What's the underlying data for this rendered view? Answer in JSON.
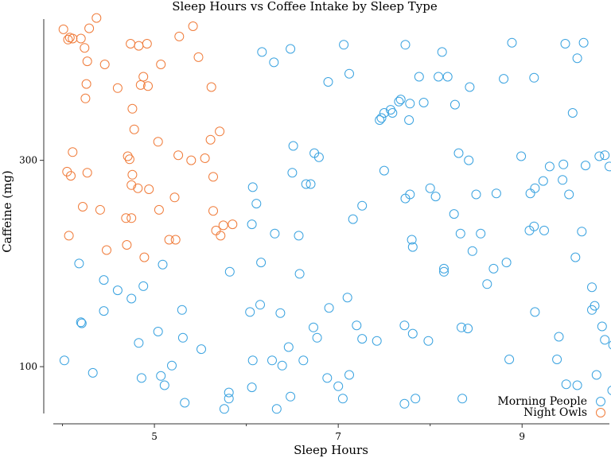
{
  "chart_data": {
    "type": "scatter",
    "title": "Sleep Hours vs Coffee Intake by Sleep Type",
    "xlabel": "Sleep Hours",
    "ylabel": "Caffeine (mg)",
    "xlim": [
      3.9,
      9.95
    ],
    "ylim": [
      50,
      440
    ],
    "xticks": [
      5,
      7,
      9
    ],
    "yticks": [
      100,
      300
    ],
    "grid": false,
    "legend_position": "bottom-right",
    "series": [
      {
        "name": "Morning People",
        "color": "#3ba3e0",
        "points": [
          [
            6.17,
            405
          ],
          [
            6.3,
            395
          ],
          [
            6.48,
            408
          ],
          [
            7.06,
            412
          ],
          [
            7.12,
            384
          ],
          [
            6.89,
            376
          ],
          [
            7.73,
            412
          ],
          [
            8.13,
            405
          ],
          [
            8.89,
            414
          ],
          [
            9.47,
            413
          ],
          [
            9.67,
            414
          ],
          [
            9.6,
            399
          ],
          [
            7.88,
            381
          ],
          [
            8.09,
            381
          ],
          [
            8.19,
            381
          ],
          [
            8.8,
            379
          ],
          [
            9.13,
            380
          ],
          [
            8.43,
            371
          ],
          [
            7.68,
            359
          ],
          [
            7.66,
            357
          ],
          [
            7.78,
            355
          ],
          [
            7.57,
            349
          ],
          [
            7.59,
            346
          ],
          [
            7.5,
            346
          ],
          [
            7.47,
            341
          ],
          [
            7.45,
            339
          ],
          [
            7.77,
            339
          ],
          [
            7.93,
            356
          ],
          [
            8.27,
            354
          ],
          [
            9.55,
            346
          ],
          [
            6.51,
            314
          ],
          [
            6.74,
            307
          ],
          [
            6.79,
            303
          ],
          [
            8.31,
            307
          ],
          [
            8.42,
            300
          ],
          [
            9.84,
            304
          ],
          [
            9.9,
            305
          ],
          [
            8.99,
            304
          ],
          [
            9.45,
            296
          ],
          [
            9.3,
            294
          ],
          [
            9.69,
            295
          ],
          [
            9.95,
            294
          ],
          [
            7.5,
            290
          ],
          [
            6.5,
            288
          ],
          [
            6.65,
            277
          ],
          [
            6.7,
            277
          ],
          [
            9.23,
            280
          ],
          [
            9.44,
            281
          ],
          [
            6.07,
            274
          ],
          [
            8.0,
            273
          ],
          [
            9.14,
            273
          ],
          [
            7.78,
            267
          ],
          [
            8.06,
            265
          ],
          [
            8.5,
            267
          ],
          [
            8.72,
            268
          ],
          [
            9.09,
            268
          ],
          [
            9.51,
            267
          ],
          [
            7.73,
            263
          ],
          [
            6.11,
            258
          ],
          [
            7.26,
            256
          ],
          [
            8.26,
            248
          ],
          [
            7.16,
            243
          ],
          [
            6.06,
            238
          ],
          [
            6.31,
            229
          ],
          [
            6.57,
            227
          ],
          [
            8.33,
            229
          ],
          [
            8.55,
            229
          ],
          [
            9.13,
            236
          ],
          [
            9.24,
            232
          ],
          [
            9.08,
            232
          ],
          [
            9.65,
            231
          ],
          [
            7.8,
            223
          ],
          [
            7.81,
            216
          ],
          [
            8.46,
            212
          ],
          [
            9.58,
            206
          ],
          [
            4.18,
            200
          ],
          [
            5.09,
            199
          ],
          [
            6.16,
            201
          ],
          [
            8.83,
            201
          ],
          [
            8.69,
            195
          ],
          [
            8.15,
            195
          ],
          [
            8.15,
            192
          ],
          [
            5.82,
            192
          ],
          [
            6.58,
            190
          ],
          [
            4.45,
            184
          ],
          [
            4.6,
            174
          ],
          [
            4.88,
            178
          ],
          [
            4.75,
            166
          ],
          [
            8.62,
            180
          ],
          [
            9.76,
            177
          ],
          [
            6.04,
            153
          ],
          [
            5.3,
            155
          ],
          [
            6.15,
            160
          ],
          [
            6.37,
            152
          ],
          [
            6.9,
            157
          ],
          [
            7.1,
            167
          ],
          [
            9.76,
            155
          ],
          [
            9.79,
            159
          ],
          [
            9.14,
            153
          ],
          [
            4.2,
            143
          ],
          [
            4.45,
            154
          ],
          [
            4.21,
            142
          ],
          [
            6.73,
            138
          ],
          [
            7.2,
            140
          ],
          [
            7.72,
            140
          ],
          [
            7.81,
            132
          ],
          [
            8.34,
            138
          ],
          [
            8.41,
            137
          ],
          [
            9.4,
            129
          ],
          [
            9.87,
            139
          ],
          [
            5.04,
            134
          ],
          [
            5.31,
            128
          ],
          [
            6.77,
            128
          ],
          [
            7.26,
            127
          ],
          [
            7.42,
            125
          ],
          [
            7.98,
            125
          ],
          [
            9.9,
            126
          ],
          [
            9.99,
            121
          ],
          [
            5.51,
            117
          ],
          [
            6.46,
            119
          ],
          [
            8.86,
            107
          ],
          [
            4.83,
            123
          ],
          [
            4.02,
            106
          ],
          [
            6.07,
            106
          ],
          [
            6.28,
            106
          ],
          [
            6.39,
            101
          ],
          [
            6.62,
            106
          ],
          [
            9.38,
            107
          ],
          [
            5.19,
            101
          ],
          [
            4.33,
            94
          ],
          [
            4.86,
            89
          ],
          [
            5.07,
            91
          ],
          [
            5.11,
            82
          ],
          [
            6.88,
            89
          ],
          [
            7.12,
            92
          ],
          [
            9.81,
            92
          ],
          [
            9.48,
            83
          ],
          [
            9.6,
            82
          ],
          [
            7.0,
            81
          ],
          [
            6.06,
            80
          ],
          [
            9.98,
            77
          ],
          [
            5.81,
            75
          ],
          [
            5.33,
            65
          ],
          [
            5.81,
            69
          ],
          [
            5.76,
            59
          ],
          [
            6.33,
            59
          ],
          [
            6.48,
            71
          ],
          [
            7.05,
            69
          ],
          [
            7.72,
            64
          ],
          [
            7.84,
            69
          ],
          [
            8.35,
            69
          ]
        ]
      },
      {
        "name": "Night Owls",
        "color": "#f07c3b",
        "points": [
          [
            4.01,
            427
          ],
          [
            4.29,
            428
          ],
          [
            4.37,
            438
          ],
          [
            4.06,
            417
          ],
          [
            4.08,
            419
          ],
          [
            5.27,
            420
          ],
          [
            5.42,
            430
          ],
          [
            4.11,
            418
          ],
          [
            4.2,
            418
          ],
          [
            4.74,
            413
          ],
          [
            4.83,
            411
          ],
          [
            4.92,
            413
          ],
          [
            4.24,
            409
          ],
          [
            5.48,
            400
          ],
          [
            4.27,
            396
          ],
          [
            4.46,
            393
          ],
          [
            5.07,
            393
          ],
          [
            4.26,
            374
          ],
          [
            4.88,
            381
          ],
          [
            4.85,
            373
          ],
          [
            4.93,
            372
          ],
          [
            4.6,
            370
          ],
          [
            5.62,
            371
          ],
          [
            4.25,
            360
          ],
          [
            4.76,
            350
          ],
          [
            4.11,
            308
          ],
          [
            4.78,
            330
          ],
          [
            5.04,
            318
          ],
          [
            5.61,
            320
          ],
          [
            5.71,
            328
          ],
          [
            5.26,
            305
          ],
          [
            5.55,
            302
          ],
          [
            4.71,
            304
          ],
          [
            5.4,
            300
          ],
          [
            4.73,
            301
          ],
          [
            4.27,
            288
          ],
          [
            4.09,
            285
          ],
          [
            4.76,
            286
          ],
          [
            5.64,
            284
          ],
          [
            4.05,
            289
          ],
          [
            4.94,
            272
          ],
          [
            4.75,
            276
          ],
          [
            4.82,
            273
          ],
          [
            5.22,
            264
          ],
          [
            4.22,
            255
          ],
          [
            4.41,
            252
          ],
          [
            5.05,
            252
          ],
          [
            5.64,
            251
          ],
          [
            4.69,
            244
          ],
          [
            4.75,
            244
          ],
          [
            4.7,
            218
          ],
          [
            4.07,
            227
          ],
          [
            4.48,
            213
          ],
          [
            4.89,
            206
          ],
          [
            5.16,
            223
          ],
          [
            5.23,
            223
          ],
          [
            5.72,
            227
          ],
          [
            5.67,
            232
          ],
          [
            5.75,
            237
          ],
          [
            5.85,
            238
          ]
        ]
      }
    ]
  }
}
